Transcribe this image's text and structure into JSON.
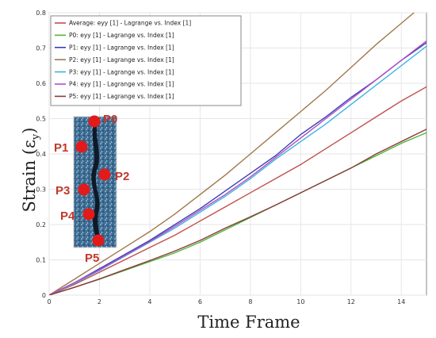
{
  "chart_data": {
    "type": "line",
    "xlabel": "Time Frame",
    "ylabel": "Strain (ε",
    "ylabel_sub": "y",
    "ylabel_close": ")",
    "xlim": [
      0,
      15
    ],
    "ylim": [
      0,
      0.8
    ],
    "xticks": [
      "0",
      "2",
      "4",
      "6",
      "8",
      "10",
      "12",
      "14"
    ],
    "yticks": [
      "0",
      "0.1",
      "0.2",
      "0.3",
      "0.4",
      "0.5",
      "0.6",
      "0.7",
      "0.8"
    ],
    "grid": true,
    "legend_position": "top-left",
    "x": [
      0,
      1,
      2,
      3,
      4,
      5,
      6,
      7,
      8,
      9,
      10,
      11,
      12,
      13,
      14,
      15
    ],
    "series": [
      {
        "name": "Average: eyy [1] - Lagrange vs. Index [1]",
        "color": "#c0504d",
        "values": [
          0,
          0.03,
          0.065,
          0.1,
          0.135,
          0.17,
          0.21,
          0.25,
          0.29,
          0.33,
          0.37,
          0.415,
          0.46,
          0.505,
          0.55,
          0.59
        ]
      },
      {
        "name": "P0: eyy [1] - Lagrange vs. Index [1]",
        "color": "#4cb83a",
        "values": [
          0,
          0.022,
          0.045,
          0.07,
          0.095,
          0.12,
          0.15,
          0.185,
          0.22,
          0.255,
          0.29,
          0.325,
          0.36,
          0.395,
          0.43,
          0.46
        ]
      },
      {
        "name": "P1: eyy [1] - Lagrange vs. Index [1]",
        "color": "#3d3db5",
        "values": [
          0,
          0.035,
          0.075,
          0.115,
          0.155,
          0.2,
          0.245,
          0.295,
          0.345,
          0.395,
          0.455,
          0.505,
          0.56,
          0.61,
          0.665,
          0.715
        ]
      },
      {
        "name": "P2: eyy [1] - Lagrange vs. Index [1]",
        "color": "#a0784d",
        "values": [
          0,
          0.045,
          0.09,
          0.135,
          0.18,
          0.23,
          0.285,
          0.34,
          0.4,
          0.46,
          0.52,
          0.58,
          0.645,
          0.71,
          0.77,
          0.83
        ]
      },
      {
        "name": "P3: eyy [1] - Lagrange vs. Index [1]",
        "color": "#3fb4dc",
        "values": [
          0,
          0.033,
          0.07,
          0.11,
          0.15,
          0.19,
          0.235,
          0.28,
          0.33,
          0.385,
          0.435,
          0.485,
          0.54,
          0.595,
          0.65,
          0.705
        ]
      },
      {
        "name": "P4: eyy [1] - Lagrange vs. Index [1]",
        "color": "#b04ec8",
        "values": [
          0,
          0.035,
          0.072,
          0.112,
          0.152,
          0.195,
          0.24,
          0.285,
          0.335,
          0.39,
          0.445,
          0.5,
          0.555,
          0.61,
          0.665,
          0.72
        ]
      },
      {
        "name": "P5: eyy [1] - Lagrange vs. Index [1]",
        "color": "#8b3a3a",
        "values": [
          0,
          0.022,
          0.046,
          0.072,
          0.098,
          0.125,
          0.155,
          0.19,
          0.222,
          0.255,
          0.29,
          0.325,
          0.36,
          0.4,
          0.435,
          0.47
        ]
      }
    ],
    "inset_markers": [
      {
        "label": "P0",
        "color": "#e31a1a"
      },
      {
        "label": "P1",
        "color": "#e31a1a"
      },
      {
        "label": "P2",
        "color": "#e31a1a"
      },
      {
        "label": "P3",
        "color": "#e31a1a"
      },
      {
        "label": "P4",
        "color": "#e31a1a"
      },
      {
        "label": "P5",
        "color": "#e31a1a"
      }
    ]
  }
}
